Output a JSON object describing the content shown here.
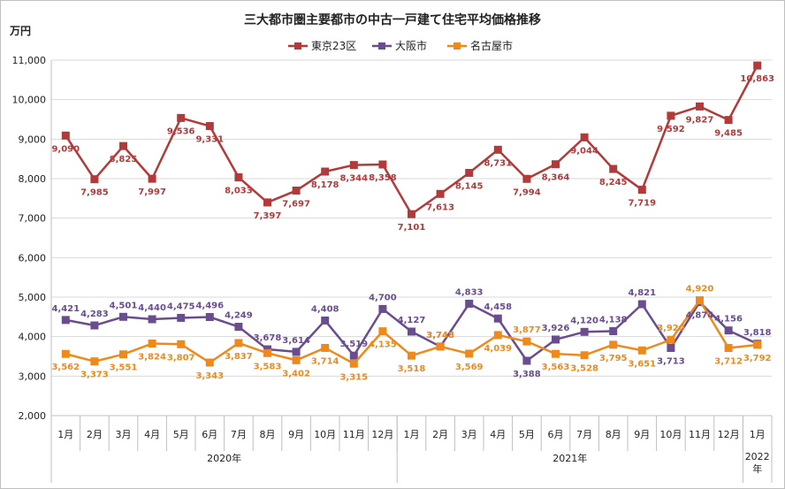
{
  "chart_data": {
    "type": "line",
    "title": "三大都市圏主要都市の中古一戸建て住宅平均価格推移",
    "ylabel": "万円",
    "ylim": [
      2000,
      11000
    ],
    "ytick_step": 1000,
    "yticks": [
      "2,000",
      "3,000",
      "4,000",
      "5,000",
      "6,000",
      "7,000",
      "8,000",
      "9,000",
      "10,000",
      "11,000"
    ],
    "categories": [
      "1月",
      "2月",
      "3月",
      "4月",
      "5月",
      "6月",
      "7月",
      "8月",
      "9月",
      "10月",
      "11月",
      "12月",
      "1月",
      "2月",
      "3月",
      "4月",
      "5月",
      "6月",
      "7月",
      "8月",
      "9月",
      "10月",
      "11月",
      "12月",
      "1月"
    ],
    "year_groups": [
      {
        "label": "2020年",
        "count": 12
      },
      {
        "label": "2021年",
        "count": 12
      },
      {
        "label": "2022\n年",
        "count": 1
      }
    ],
    "legend_position": "top-center",
    "series": [
      {
        "name": "東京23区",
        "color": "#b13a3a",
        "marker": "square",
        "values": [
          9090,
          7985,
          8825,
          7997,
          9536,
          9331,
          8033,
          7397,
          7697,
          8178,
          8344,
          8358,
          7101,
          7613,
          8145,
          8731,
          7994,
          8364,
          9044,
          8245,
          7719,
          9592,
          9827,
          9485,
          10863
        ],
        "labels": [
          "9,090",
          "7,985",
          "8,825",
          "7,997",
          "9,536",
          "9,331",
          "8,033",
          "7,397",
          "7,697",
          "8,178",
          "8,344",
          "8,358",
          "7,101",
          "7,613",
          "8,145",
          "8,731",
          "7,994",
          "8,364",
          "9,044",
          "8,245",
          "7,719",
          "9,592",
          "9,827",
          "9,485",
          "10,863"
        ]
      },
      {
        "name": "大阪市",
        "color": "#6a4d8f",
        "marker": "square",
        "values": [
          4421,
          4283,
          4501,
          4440,
          4475,
          4496,
          4249,
          3678,
          3614,
          4408,
          3519,
          4700,
          4127,
          3748,
          4833,
          4458,
          3388,
          3926,
          4120,
          4138,
          4821,
          3713,
          4874,
          4156,
          3818
        ],
        "labels": [
          "4,421",
          "4,283",
          "4,501",
          "4,440",
          "4,475",
          "4,496",
          "4,249",
          "3,678",
          "3,614",
          "4,408",
          "3,519",
          "4,700",
          "4,127",
          "3,748",
          "4,833",
          "4,458",
          "3,388",
          "3,926",
          "4,120",
          "4,138",
          "4,821",
          "3,713",
          "4,874",
          "4,156",
          "3,818"
        ]
      },
      {
        "name": "名古屋市",
        "color": "#ee8a1c",
        "marker": "square",
        "values": [
          3562,
          3373,
          3551,
          3824,
          3807,
          3343,
          3837,
          3583,
          3402,
          3714,
          3315,
          4135,
          3518,
          3748,
          3569,
          4039,
          3877,
          3563,
          3528,
          3795,
          3651,
          3920,
          4920,
          3712,
          3792
        ],
        "labels": [
          "3,562",
          "3,373",
          "3,551",
          "3,824",
          "3,807",
          "3,343",
          "3,837",
          "3,583",
          "3,402",
          "3,714",
          "3,315",
          "4,135",
          "3,518",
          "3,748",
          "3,569",
          "4,039",
          "3,877",
          "3,563",
          "3,528",
          "3,795",
          "3,651",
          "3,920",
          "4,920",
          "3,712",
          "3,792"
        ]
      }
    ]
  }
}
